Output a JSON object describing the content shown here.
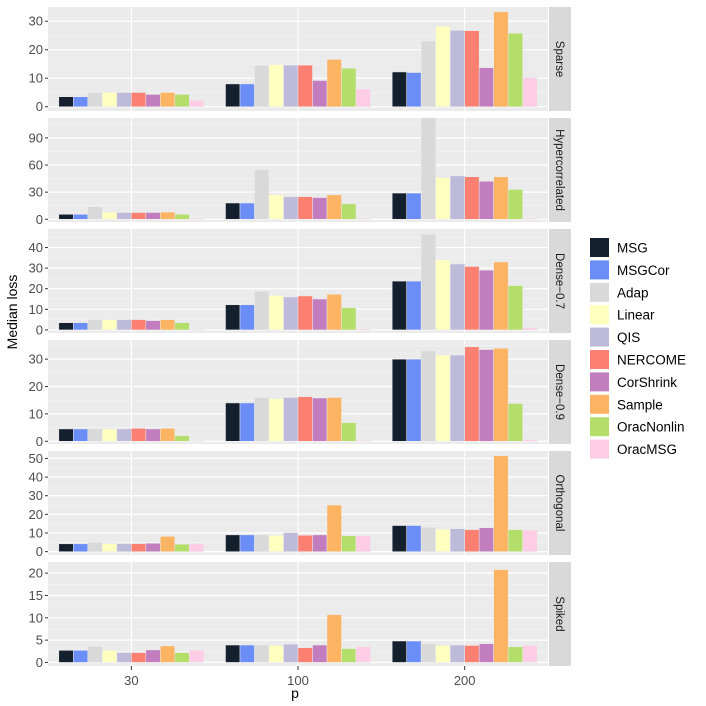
{
  "chart_data": {
    "type": "bar",
    "xlabel": "p",
    "ylabel": "Median loss",
    "categories": [
      "30",
      "100",
      "200"
    ],
    "series_names": [
      "MSG",
      "MSGCor",
      "Adap",
      "Linear",
      "QIS",
      "NERCOME",
      "CorShrink",
      "Sample",
      "OracNonlin",
      "OracMSG"
    ],
    "colors": [
      "#15202e",
      "#6b8df7",
      "#d9d9d9",
      "#ffffbf",
      "#bebada",
      "#fb8072",
      "#c17dbd",
      "#fdb462",
      "#b3de69",
      "#fccde5"
    ],
    "panels": [
      {
        "strip": "Sparse",
        "ylim": [
          -1.5,
          35
        ],
        "yticks": [
          0,
          10,
          20,
          30
        ],
        "values": [
          [
            3.5,
            3.5,
            5.0,
            5.0,
            5.0,
            5.0,
            4.3,
            5.0,
            4.3,
            2.3
          ],
          [
            8.0,
            8.0,
            14.5,
            14.8,
            14.6,
            14.6,
            9.2,
            16.6,
            13.5,
            6.2
          ],
          [
            12.2,
            12.0,
            23.0,
            28.2,
            26.8,
            26.7,
            13.7,
            33.3,
            25.8,
            10.2
          ]
        ]
      },
      {
        "strip": "Hypercorrelated",
        "ylim": [
          -3,
          112
        ],
        "yticks": [
          0,
          30,
          60,
          90
        ],
        "values": [
          [
            5.5,
            5.5,
            14.0,
            8.0,
            7.5,
            7.5,
            7.5,
            8.0,
            5.5,
            1.0
          ],
          [
            18.0,
            18.0,
            55.0,
            27.0,
            25.0,
            25.0,
            24.0,
            27.0,
            17.0,
            1.0
          ],
          [
            29.0,
            29.0,
            113.0,
            46.0,
            48.0,
            47.0,
            42.0,
            47.0,
            33.0,
            1.0
          ]
        ]
      },
      {
        "strip": "Dense−0.7",
        "ylim": [
          -1.5,
          49
        ],
        "yticks": [
          0,
          10,
          20,
          30,
          40
        ],
        "values": [
          [
            3.5,
            3.5,
            5.0,
            5.0,
            5.0,
            5.0,
            4.5,
            5.0,
            3.5,
            0.3
          ],
          [
            12.2,
            12.2,
            18.7,
            16.7,
            16.0,
            16.5,
            15.0,
            17.3,
            10.8,
            0.5
          ],
          [
            23.7,
            23.7,
            46.5,
            34.0,
            32.0,
            30.8,
            29.0,
            33.0,
            21.5,
            1.0
          ]
        ]
      },
      {
        "strip": "Dense−0.9",
        "ylim": [
          -1,
          37
        ],
        "yticks": [
          0,
          10,
          20,
          30
        ],
        "values": [
          [
            4.5,
            4.5,
            4.5,
            4.5,
            4.5,
            4.7,
            4.5,
            4.7,
            2.0,
            0.2
          ],
          [
            14.0,
            14.0,
            16.0,
            15.5,
            16.0,
            16.3,
            15.8,
            16.0,
            6.8,
            0.3
          ],
          [
            30.0,
            30.0,
            33.0,
            31.5,
            31.5,
            34.5,
            33.5,
            34.0,
            13.8,
            0.5
          ]
        ]
      },
      {
        "strip": "Orthogonal",
        "ylim": [
          -1.8,
          54
        ],
        "yticks": [
          0,
          10,
          20,
          30,
          40,
          50
        ],
        "values": [
          [
            4.2,
            4.2,
            5.0,
            4.3,
            4.3,
            4.3,
            4.5,
            8.2,
            4.0,
            4.3
          ],
          [
            9.0,
            9.0,
            9.0,
            8.8,
            10.2,
            8.8,
            9.0,
            25.0,
            8.5,
            8.5
          ],
          [
            14.0,
            14.0,
            13.0,
            12.0,
            12.3,
            11.8,
            12.8,
            51.5,
            11.8,
            11.5
          ]
        ]
      },
      {
        "strip": "Spiked",
        "ylim": [
          -0.8,
          22.5
        ],
        "yticks": [
          0,
          5,
          10,
          15,
          20
        ],
        "values": [
          [
            2.7,
            2.7,
            3.6,
            2.7,
            2.2,
            2.2,
            2.8,
            3.7,
            2.2,
            2.7
          ],
          [
            3.9,
            3.9,
            3.9,
            3.8,
            4.1,
            3.3,
            3.9,
            10.7,
            3.1,
            3.5
          ],
          [
            4.8,
            4.8,
            4.2,
            3.8,
            3.9,
            3.8,
            4.2,
            20.8,
            3.5,
            3.8
          ]
        ]
      }
    ]
  }
}
